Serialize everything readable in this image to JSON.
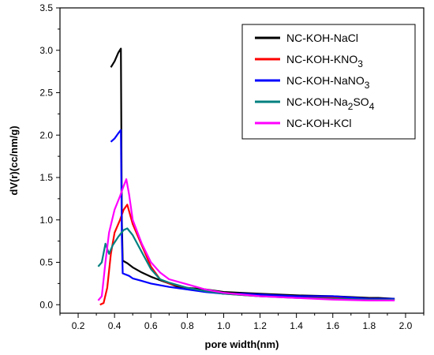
{
  "chart_data": {
    "type": "line",
    "xlabel": "pore width(nm)",
    "ylabel": "dV(r)(cc/nm/g)",
    "xlim": [
      0.1,
      2.1
    ],
    "ylim": [
      -0.1,
      3.5
    ],
    "xticks": [
      "0.2",
      "0.4",
      "0.6",
      "0.8",
      "1.0",
      "1.2",
      "1.4",
      "1.6",
      "1.8",
      "2.0"
    ],
    "yticks": [
      "0.0",
      "0.5",
      "1.0",
      "1.5",
      "2.0",
      "2.5",
      "3.0",
      "3.5"
    ],
    "legend_position": "top-right",
    "series": [
      {
        "name": "NC-KOH-NaCl",
        "name_main": "NC-KOH-NaCl",
        "name_sub": "",
        "name_tail": "",
        "color": "#000000",
        "points": [
          [
            0.38,
            2.8
          ],
          [
            0.4,
            2.87
          ],
          [
            0.42,
            2.97
          ],
          [
            0.435,
            3.02
          ],
          [
            0.44,
            1.0
          ],
          [
            0.445,
            0.52
          ],
          [
            0.47,
            0.49
          ],
          [
            0.5,
            0.44
          ],
          [
            0.55,
            0.38
          ],
          [
            0.6,
            0.33
          ],
          [
            0.65,
            0.29
          ],
          [
            0.7,
            0.25
          ],
          [
            0.75,
            0.21
          ],
          [
            0.8,
            0.2
          ],
          [
            0.9,
            0.18
          ],
          [
            1.0,
            0.15
          ],
          [
            1.1,
            0.14
          ],
          [
            1.2,
            0.13
          ],
          [
            1.4,
            0.11
          ],
          [
            1.6,
            0.1
          ],
          [
            1.8,
            0.08
          ],
          [
            1.85,
            0.08
          ],
          [
            1.94,
            0.07
          ]
        ]
      },
      {
        "name": "NC-KOH-KNO3",
        "name_main": "NC-KOH-KNO",
        "name_sub": "3",
        "name_tail": "",
        "color": "#ff0000",
        "points": [
          [
            0.32,
            0.0
          ],
          [
            0.34,
            0.02
          ],
          [
            0.36,
            0.2
          ],
          [
            0.38,
            0.6
          ],
          [
            0.4,
            0.85
          ],
          [
            0.43,
            1.0
          ],
          [
            0.45,
            1.12
          ],
          [
            0.47,
            1.18
          ],
          [
            0.5,
            0.95
          ],
          [
            0.55,
            0.7
          ],
          [
            0.6,
            0.45
          ],
          [
            0.65,
            0.3
          ],
          [
            0.7,
            0.25
          ],
          [
            0.8,
            0.2
          ],
          [
            0.9,
            0.16
          ],
          [
            1.0,
            0.13
          ],
          [
            1.2,
            0.1
          ],
          [
            1.4,
            0.09
          ],
          [
            1.6,
            0.08
          ],
          [
            1.8,
            0.07
          ],
          [
            1.94,
            0.06
          ]
        ]
      },
      {
        "name": "NC-KOH-NaNO3",
        "name_main": "NC-KOH-NaNO",
        "name_sub": "3",
        "name_tail": "",
        "color": "#0000ff",
        "points": [
          [
            0.38,
            1.92
          ],
          [
            0.4,
            1.96
          ],
          [
            0.42,
            2.02
          ],
          [
            0.435,
            2.06
          ],
          [
            0.44,
            0.8
          ],
          [
            0.445,
            0.37
          ],
          [
            0.48,
            0.34
          ],
          [
            0.5,
            0.31
          ],
          [
            0.55,
            0.28
          ],
          [
            0.6,
            0.25
          ],
          [
            0.7,
            0.21
          ],
          [
            0.8,
            0.18
          ],
          [
            0.9,
            0.15
          ],
          [
            1.0,
            0.13
          ],
          [
            1.1,
            0.13
          ],
          [
            1.2,
            0.12
          ],
          [
            1.4,
            0.1
          ],
          [
            1.56,
            0.1
          ],
          [
            1.6,
            0.1
          ],
          [
            1.8,
            0.07
          ],
          [
            1.94,
            0.07
          ]
        ]
      },
      {
        "name": "NC-KOH-Na2SO4",
        "name_main": "NC-KOH-Na",
        "name_sub": "2",
        "name_tail": "SO",
        "name_sub2": "4",
        "color": "#008080",
        "points": [
          [
            0.31,
            0.45
          ],
          [
            0.33,
            0.5
          ],
          [
            0.35,
            0.72
          ],
          [
            0.37,
            0.6
          ],
          [
            0.39,
            0.7
          ],
          [
            0.42,
            0.8
          ],
          [
            0.45,
            0.88
          ],
          [
            0.47,
            0.9
          ],
          [
            0.5,
            0.82
          ],
          [
            0.55,
            0.62
          ],
          [
            0.6,
            0.42
          ],
          [
            0.65,
            0.3
          ],
          [
            0.7,
            0.26
          ],
          [
            0.8,
            0.2
          ],
          [
            0.9,
            0.16
          ],
          [
            1.0,
            0.13
          ],
          [
            1.2,
            0.1
          ],
          [
            1.4,
            0.08
          ],
          [
            1.6,
            0.07
          ],
          [
            1.8,
            0.06
          ],
          [
            1.94,
            0.06
          ]
        ]
      },
      {
        "name": "NC-KOH-KCl",
        "name_main": "NC-KOH-KCl",
        "name_sub": "",
        "name_tail": "",
        "color": "#ff00ff",
        "points": [
          [
            0.31,
            0.05
          ],
          [
            0.33,
            0.1
          ],
          [
            0.35,
            0.5
          ],
          [
            0.37,
            0.85
          ],
          [
            0.4,
            1.12
          ],
          [
            0.43,
            1.28
          ],
          [
            0.45,
            1.4
          ],
          [
            0.465,
            1.48
          ],
          [
            0.48,
            1.3
          ],
          [
            0.5,
            1.0
          ],
          [
            0.55,
            0.72
          ],
          [
            0.6,
            0.5
          ],
          [
            0.65,
            0.38
          ],
          [
            0.7,
            0.3
          ],
          [
            0.8,
            0.24
          ],
          [
            0.9,
            0.18
          ],
          [
            1.0,
            0.14
          ],
          [
            1.1,
            0.12
          ],
          [
            1.2,
            0.1
          ],
          [
            1.4,
            0.08
          ],
          [
            1.6,
            0.06
          ],
          [
            1.8,
            0.05
          ],
          [
            1.94,
            0.05
          ]
        ]
      }
    ]
  }
}
